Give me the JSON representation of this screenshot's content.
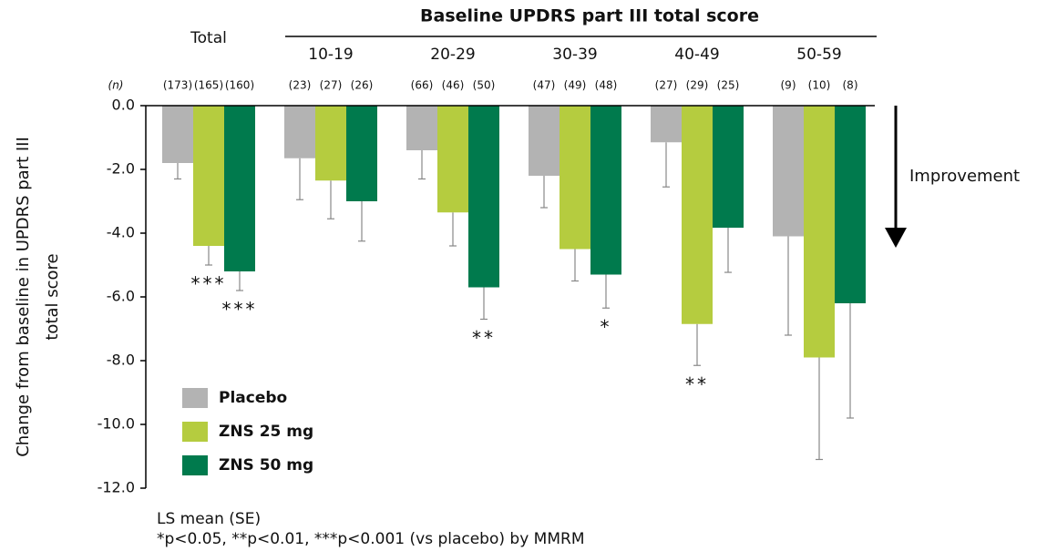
{
  "chart_data": {
    "type": "bar",
    "group_header": "Baseline UPDRS part III total score",
    "categories": [
      "Total",
      "10-19",
      "20-29",
      "30-39",
      "40-49",
      "50-59"
    ],
    "n_header": "(n)",
    "series": [
      {
        "name": "Placebo",
        "color": "#b3b3b3",
        "values": [
          -1.8,
          -1.65,
          -1.4,
          -2.2,
          -1.15,
          -4.1
        ],
        "errors": [
          0.5,
          1.3,
          0.9,
          1.0,
          1.4,
          3.1
        ],
        "n_labels": [
          "(173)",
          "(23)",
          "(66)",
          "(47)",
          "(27)",
          "(9)"
        ],
        "significance": [
          null,
          null,
          null,
          null,
          null,
          null
        ]
      },
      {
        "name": "ZNS 25 mg",
        "color": "#b5cc3f",
        "values": [
          -4.4,
          -2.35,
          -3.35,
          -4.5,
          -6.85,
          -7.9
        ],
        "errors": [
          0.6,
          1.2,
          1.05,
          1.0,
          1.3,
          3.2
        ],
        "n_labels": [
          "(165)",
          "(27)",
          "(46)",
          "(49)",
          "(29)",
          "(10)"
        ],
        "significance": [
          "***",
          null,
          null,
          null,
          "**",
          null
        ]
      },
      {
        "name": "ZNS 50 mg",
        "color": "#007a4d",
        "values": [
          -5.2,
          -3.0,
          -5.7,
          -5.3,
          -3.83,
          -6.2
        ],
        "errors": [
          0.6,
          1.25,
          1.0,
          1.05,
          1.4,
          3.6
        ],
        "n_labels": [
          "(160)",
          "(26)",
          "(50)",
          "(48)",
          "(25)",
          "(8)"
        ],
        "significance": [
          "***",
          null,
          "**",
          "*",
          null,
          null
        ]
      }
    ],
    "ylabel": [
      "Change from baseline in UPDRS part III",
      "total score"
    ],
    "ylim": [
      -12,
      0
    ],
    "yticks": [
      {
        "value": 0,
        "label": "0.0"
      },
      {
        "value": -2,
        "label": "-2.0"
      },
      {
        "value": -4,
        "label": "-4.0"
      },
      {
        "value": -6,
        "label": "-6.0"
      },
      {
        "value": -8,
        "label": "-8.0"
      },
      {
        "value": -10,
        "label": "-10.0"
      },
      {
        "value": -12,
        "label": "-12.0"
      }
    ],
    "arrow_label": "Improvement",
    "footnotes": [
      "LS mean (SE)",
      "*p<0.05, **p<0.01, ***p<0.001 (vs placebo) by MMRM"
    ]
  }
}
